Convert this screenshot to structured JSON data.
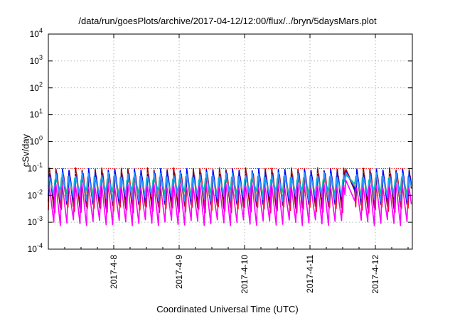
{
  "chart_data": {
    "type": "line",
    "title": "/data/run/goesPlots/archive/2017-04-12/12:00/flux/../bryn/5daysMars.plot",
    "xlabel": "Coordinated Universal Time (UTC)",
    "ylabel": "cSv/day",
    "y_scale": "log",
    "ylim": [
      0.0001,
      10000
    ],
    "xlim": [
      "2017-04-07 03:00",
      "2017-04-12 12:00"
    ],
    "y_ticks": [
      {
        "value": 0.0001,
        "base": "10",
        "exp": "-4"
      },
      {
        "value": 0.001,
        "base": "10",
        "exp": "-3"
      },
      {
        "value": 0.01,
        "base": "10",
        "exp": "-2"
      },
      {
        "value": 0.1,
        "base": "10",
        "exp": "-1"
      },
      {
        "value": 1,
        "base": "10",
        "exp": "0"
      },
      {
        "value": 10,
        "base": "10",
        "exp": "1"
      },
      {
        "value": 100,
        "base": "10",
        "exp": "2"
      },
      {
        "value": 1000,
        "base": "10",
        "exp": "3"
      },
      {
        "value": 10000,
        "base": "10",
        "exp": "4"
      }
    ],
    "x_ticks": [
      "2017-4-8",
      "2017-4-9",
      "2017-4-10",
      "2017-4-11",
      "2017-4-12"
    ],
    "grid": true,
    "pattern": {
      "cycles_per_day": 10,
      "gap_start_hours": 88.0,
      "gap_end_hours": 91.5,
      "reference_level": 0.1
    },
    "series": [
      {
        "color": "#ff0000",
        "peak": 0.105,
        "trough": 0.0028
      },
      {
        "color": "#8b0000",
        "peak": 0.095,
        "trough": 0.0022
      },
      {
        "color": "#ffa500",
        "peak": 0.07,
        "trough": 0.009
      },
      {
        "color": "#00c8a0",
        "peak": 0.06,
        "trough": 0.012
      },
      {
        "color": "#0000ff",
        "peak": 0.085,
        "trough": 0.004
      },
      {
        "color": "#3399ff",
        "peak": 0.075,
        "trough": 0.006
      },
      {
        "color": "#ff00ff",
        "peak": 0.04,
        "trough": 0.0009
      }
    ]
  }
}
